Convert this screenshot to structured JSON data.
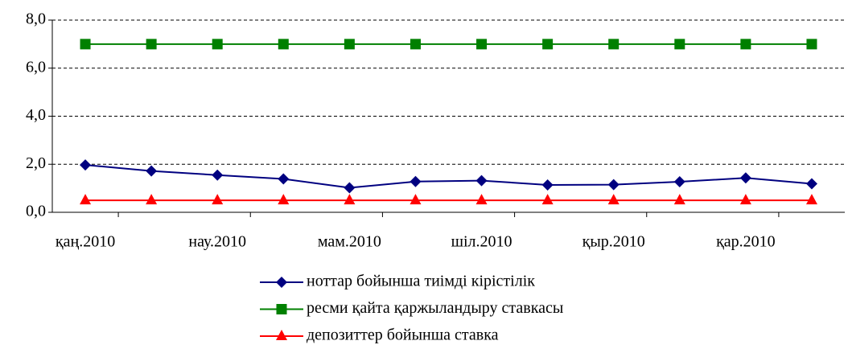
{
  "chart_data": {
    "type": "line",
    "categories": [
      "қаң.2010",
      null,
      "нау.2010",
      null,
      "мам.2010",
      null,
      "шіл.2010",
      null,
      "қыр.2010",
      null,
      "қар.2010",
      null
    ],
    "series": [
      {
        "name": "ноттар бойынша тиімді кірістілік",
        "color": "#000080",
        "marker": "diamond",
        "values": [
          1.97,
          1.72,
          1.55,
          1.39,
          1.02,
          1.28,
          1.32,
          1.14,
          1.15,
          1.27,
          1.43,
          1.19
        ]
      },
      {
        "name": "ресми қайта қаржыландыру ставкасы",
        "color": "#008000",
        "marker": "square",
        "values": [
          7.0,
          7.0,
          7.0,
          7.0,
          7.0,
          7.0,
          7.0,
          7.0,
          7.0,
          7.0,
          7.0,
          7.0
        ]
      },
      {
        "name": "депозиттер бойынша ставка",
        "color": "#ff0000",
        "marker": "triangle",
        "values": [
          0.5,
          0.5,
          0.5,
          0.5,
          0.5,
          0.5,
          0.5,
          0.5,
          0.5,
          0.5,
          0.5,
          0.5
        ]
      }
    ],
    "ylim": [
      0,
      8
    ],
    "yticks": [
      {
        "value": 0,
        "label": "0,0"
      },
      {
        "value": 2,
        "label": "2,0"
      },
      {
        "value": 4,
        "label": "4,0"
      },
      {
        "value": 6,
        "label": "6,0"
      },
      {
        "value": 8,
        "label": "8,0"
      }
    ],
    "grid": true,
    "legend": "bottom"
  }
}
